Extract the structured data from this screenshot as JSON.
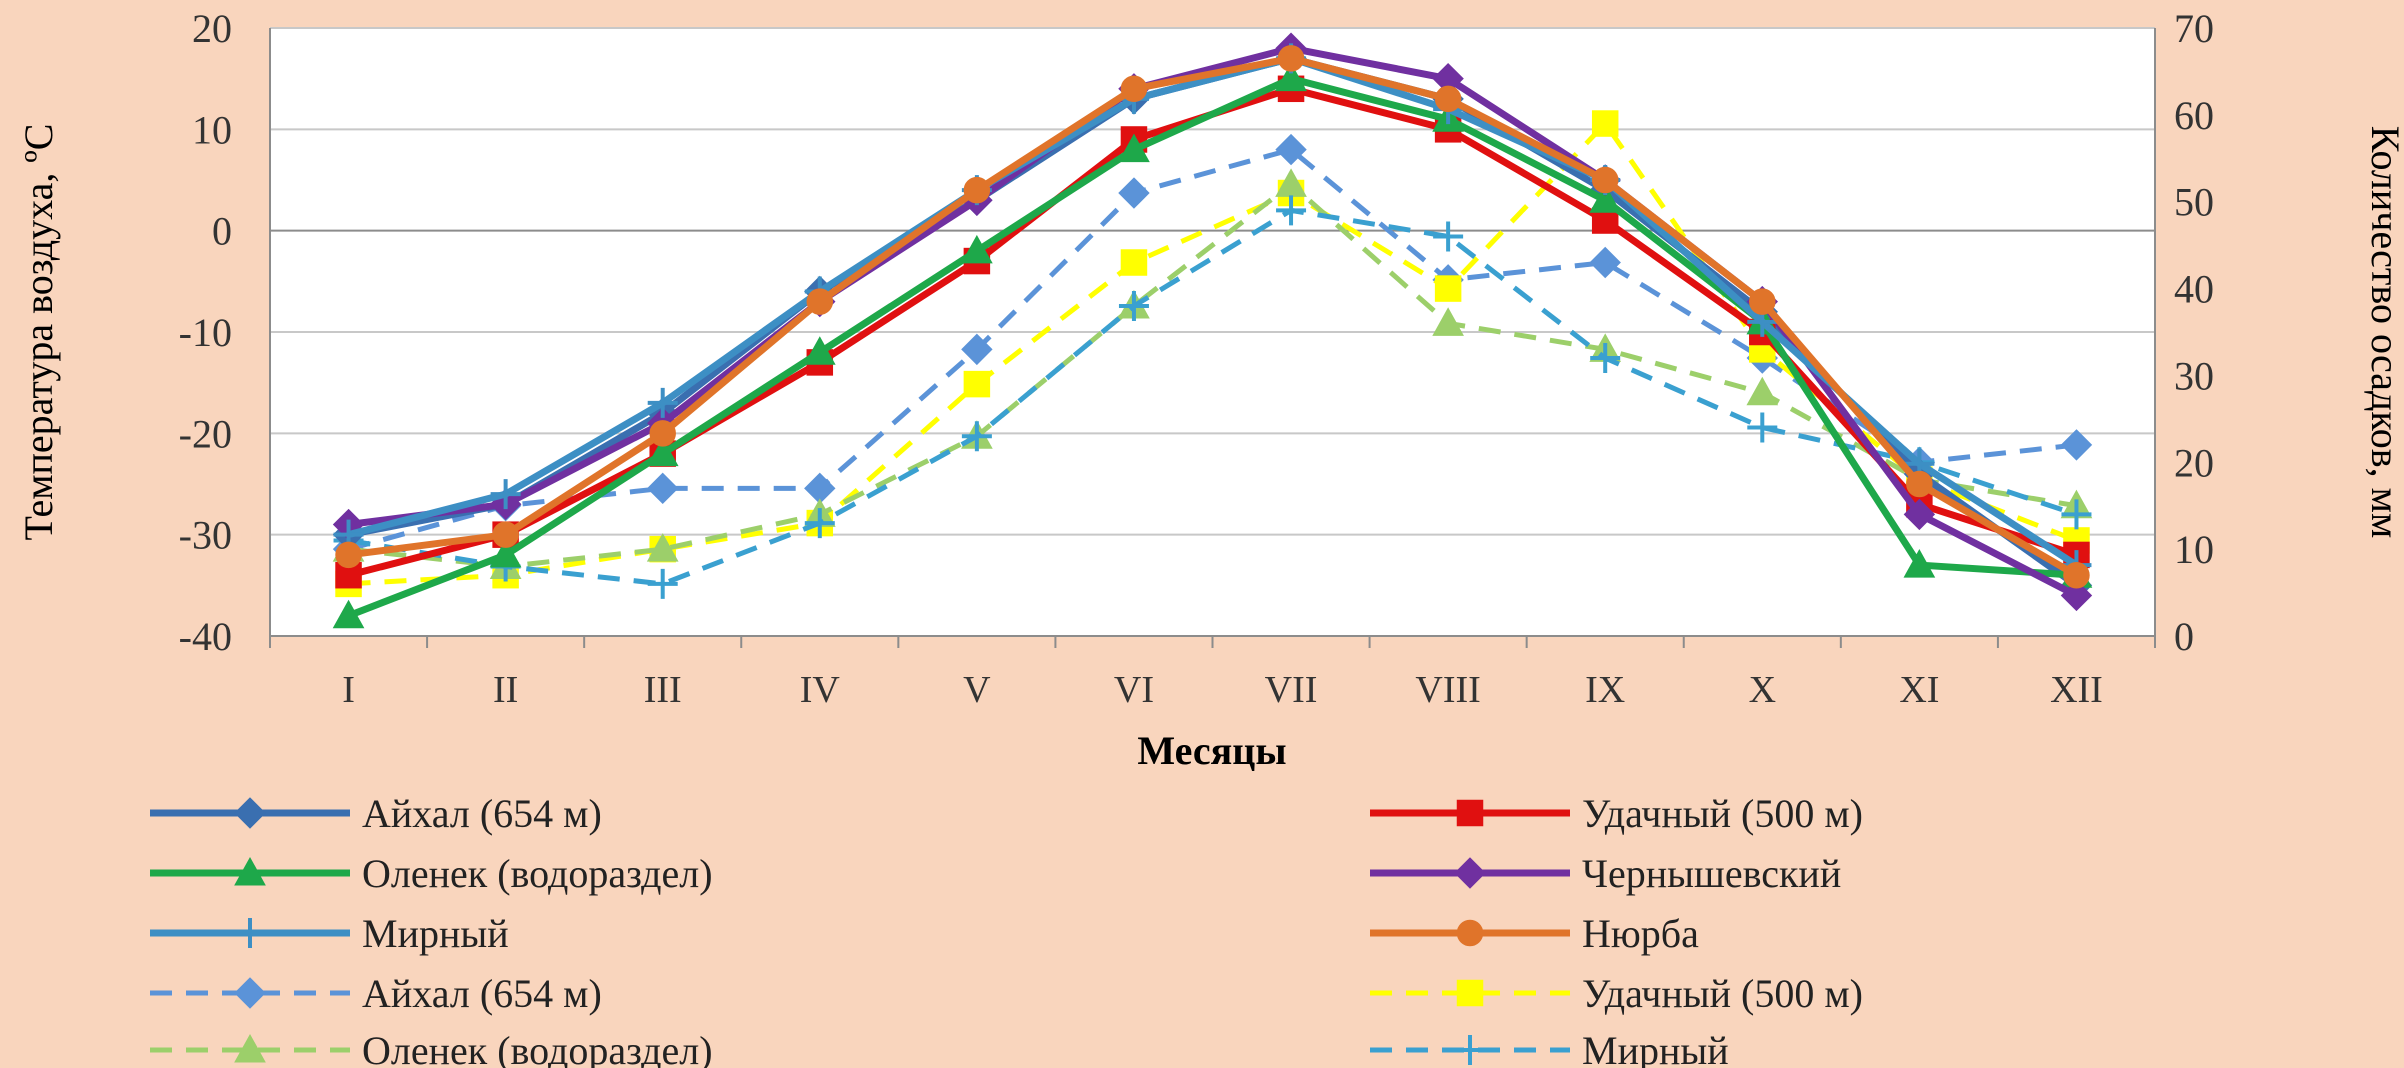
{
  "chart_data": {
    "type": "line",
    "title": "",
    "xlabel": "Месяцы",
    "ylabel_left": "Температура воздуха, ºС",
    "ylabel_right": "Количество осадков, мм",
    "categories": [
      "I",
      "II",
      "III",
      "IV",
      "V",
      "VI",
      "VII",
      "VIII",
      "IX",
      "X",
      "XI",
      "XII"
    ],
    "y_left": {
      "min": -40,
      "max": 20,
      "ticks": [
        20,
        10,
        0,
        -10,
        -20,
        -30,
        -40
      ]
    },
    "y_right": {
      "min": 0,
      "max": 70,
      "ticks": [
        70,
        60,
        50,
        40,
        30,
        20,
        10,
        0
      ]
    },
    "grid": true,
    "legend_position": "bottom",
    "series": [
      {
        "name": "Айхал (654 м)",
        "axis": "left",
        "color": "#3a6fb0",
        "marker": "diamond",
        "dash": false,
        "values": [
          -30,
          -27,
          -18,
          -6,
          3,
          13,
          17,
          13,
          4,
          -8,
          -24,
          -35
        ]
      },
      {
        "name": "Удачный (500 м)",
        "axis": "left",
        "color": "#e01010",
        "marker": "square",
        "dash": false,
        "values": [
          -34,
          -30,
          -22,
          -13,
          -3,
          9,
          14,
          10,
          1,
          -10,
          -27,
          -32
        ]
      },
      {
        "name": "Оленек (водораздел)",
        "axis": "left",
        "color": "#1ea84a",
        "marker": "triangle",
        "dash": false,
        "values": [
          -38,
          -32,
          -22,
          -12,
          -2,
          8,
          15,
          11,
          3,
          -9,
          -33,
          -34
        ]
      },
      {
        "name": "Чернышевский",
        "axis": "left",
        "color": "#7030a0",
        "marker": "diamond",
        "dash": false,
        "values": [
          -29,
          -27,
          -19,
          -7,
          3,
          14,
          18,
          15,
          5,
          -7,
          -28,
          -36
        ]
      },
      {
        "name": "Мирный",
        "axis": "left",
        "color": "#3d8fc4",
        "marker": "plus",
        "dash": false,
        "values": [
          -30,
          -26,
          -17,
          -6,
          4,
          13,
          17,
          12,
          5,
          -9,
          -23,
          -33
        ]
      },
      {
        "name": "Нюрба",
        "axis": "left",
        "color": "#e0742a",
        "marker": "circle",
        "dash": false,
        "values": [
          -32,
          -30,
          -20,
          -7,
          4,
          14,
          17,
          13,
          5,
          -7,
          -25,
          -34
        ]
      },
      {
        "name": "Айхал (654 м)",
        "axis": "right",
        "color": "#5b93d8",
        "marker": "diamond",
        "dash": true,
        "values": [
          10,
          15,
          17,
          17,
          33,
          51,
          56,
          41,
          43,
          32,
          20,
          22
        ]
      },
      {
        "name": "Удачный (500 м)",
        "axis": "right",
        "color": "#ffff00",
        "marker": "square",
        "dash": true,
        "values": [
          6,
          7,
          10,
          13,
          29,
          43,
          51,
          40,
          59,
          33,
          18,
          11
        ]
      },
      {
        "name": "Оленек (водораздел)",
        "axis": "right",
        "color": "#9ccf6a",
        "marker": "triangle",
        "dash": true,
        "values": [
          10,
          8,
          10,
          14,
          23,
          38,
          52,
          36,
          33,
          28,
          18,
          15
        ]
      },
      {
        "name": "Мирный",
        "axis": "right",
        "color": "#3aa0d0",
        "marker": "plus",
        "dash": true,
        "values": [
          11,
          8,
          6,
          13,
          23,
          38,
          49,
          46,
          32,
          24,
          20,
          14
        ]
      }
    ]
  }
}
